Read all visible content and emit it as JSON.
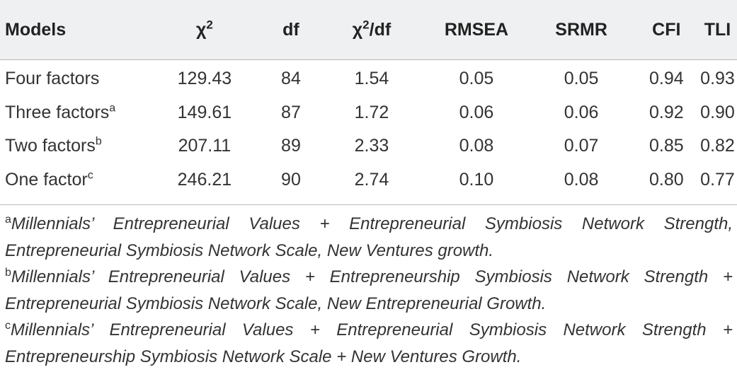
{
  "table": {
    "headers": [
      "Models",
      "χ",
      "df",
      "χ",
      "RMSEA",
      "SRMR",
      "CFI",
      "TLI"
    ],
    "header_chi_sup": "2",
    "header_chi_df_suffix": "/df",
    "rows": [
      {
        "model": "Four factors",
        "sup": "",
        "chi2": "129.43",
        "df": "84",
        "chi2df": "1.54",
        "rmsea": "0.05",
        "srmr": "0.05",
        "cfi": "0.94",
        "tli": "0.93"
      },
      {
        "model": "Three factors",
        "sup": "a",
        "chi2": "149.61",
        "df": "87",
        "chi2df": "1.72",
        "rmsea": "0.06",
        "srmr": "0.06",
        "cfi": "0.92",
        "tli": "0.90"
      },
      {
        "model": "Two factors",
        "sup": "b",
        "chi2": "207.11",
        "df": "89",
        "chi2df": "2.33",
        "rmsea": "0.08",
        "srmr": "0.07",
        "cfi": "0.85",
        "tli": "0.82"
      },
      {
        "model": "One factor",
        "sup": "c",
        "chi2": "246.21",
        "df": "90",
        "chi2df": "2.74",
        "rmsea": "0.10",
        "srmr": "0.08",
        "cfi": "0.80",
        "tli": "0.77"
      }
    ]
  },
  "footnotes": [
    {
      "mark": "a",
      "text": "Millennials’ Entrepreneurial Values + Entrepreneurial Symbiosis Network Strength, Entrepreneurial Symbiosis Network Scale, New Ventures growth."
    },
    {
      "mark": "b",
      "text": "Millennials’ Entrepreneurial Values + Entrepreneurship Symbiosis Network Strength + Entrepreneurial Symbiosis Network Scale, New Entrepreneurial Growth."
    },
    {
      "mark": "c",
      "text": "Millennials’ Entrepreneurial Values + Entrepreneurial Symbiosis Network Strength + Entrepreneurship Symbiosis Network Scale + New Ventures Growth."
    }
  ],
  "colors": {
    "header_bg": "#eef0f2",
    "rule": "#b9b9b9",
    "text": "#333333"
  }
}
